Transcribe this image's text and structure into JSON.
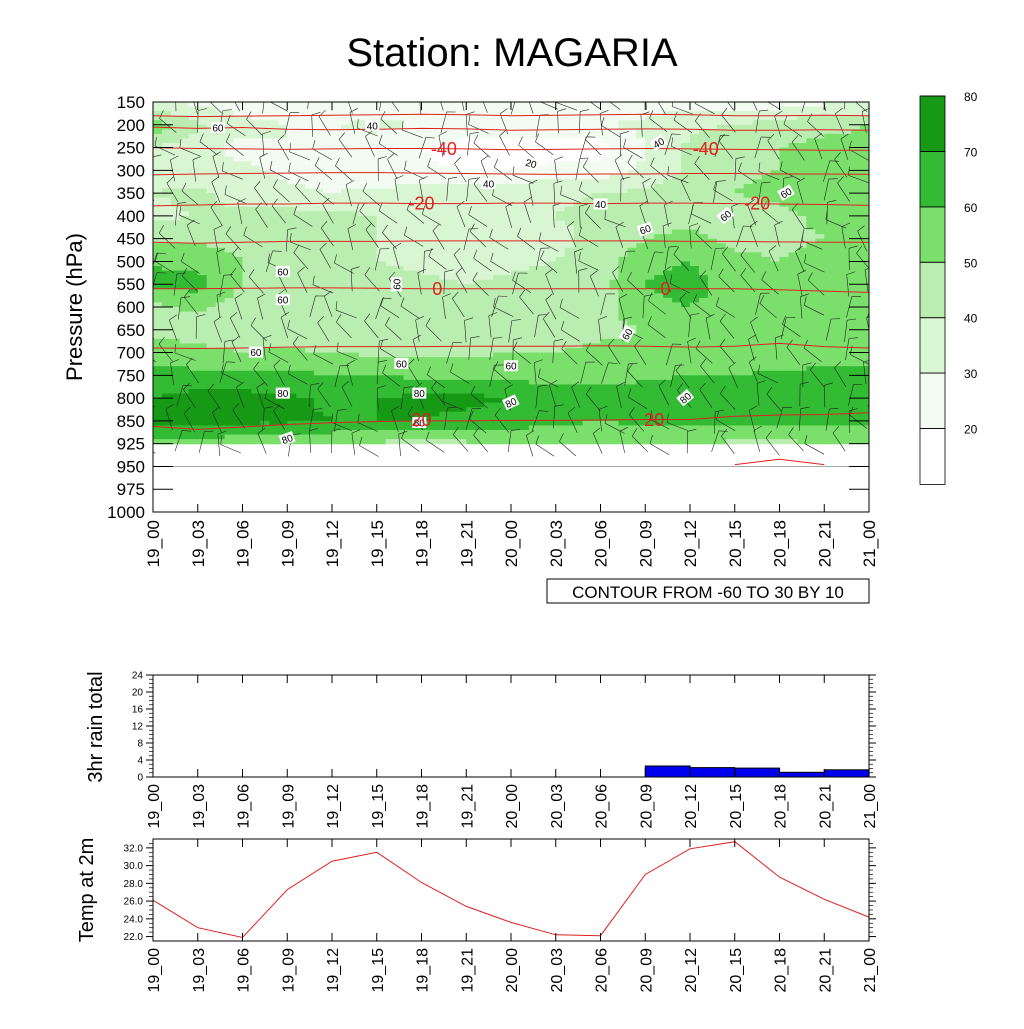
{
  "title": "Station: MAGARIA",
  "time_labels": [
    "19_00",
    "19_03",
    "19_06",
    "19_09",
    "19_12",
    "19_15",
    "19_18",
    "19_21",
    "20_00",
    "20_03",
    "20_06",
    "20_09",
    "20_12",
    "20_15",
    "20_18",
    "20_21",
    "21_00"
  ],
  "colors": {
    "fill_levels": [
      "#ffffff",
      "#f2fcf0",
      "#d9f6d3",
      "#b9eeb0",
      "#7ae06b",
      "#33bb33",
      "#169a16"
    ],
    "contour_line": "#e02020",
    "rain_bar": "#0000ee",
    "temp_line": "#e02020"
  },
  "chart_data": [
    {
      "type": "heatmap",
      "name": "cross-section",
      "ylabel": "Pressure (hPa)",
      "y_ticks": [
        150,
        200,
        250,
        300,
        350,
        400,
        450,
        500,
        550,
        600,
        650,
        700,
        750,
        800,
        850,
        925,
        950,
        975,
        1000
      ],
      "shaded_variable_levels": [
        30,
        40,
        50,
        60,
        70,
        80
      ],
      "shaded_rows_pressure": [
        150,
        200,
        250,
        300,
        350,
        400,
        450,
        500,
        550,
        600,
        650,
        700,
        750,
        800,
        850,
        925
      ],
      "shaded_grid": [
        [
          42,
          38,
          32,
          34,
          32,
          32,
          34,
          35,
          32,
          30,
          32,
          36,
          34,
          30,
          34,
          38,
          40
        ],
        [
          66,
          52,
          44,
          40,
          40,
          42,
          40,
          40,
          40,
          38,
          40,
          42,
          48,
          50,
          54,
          58,
          60
        ],
        [
          50,
          45,
          36,
          40,
          38,
          36,
          30,
          25,
          22,
          22,
          26,
          40,
          52,
          58,
          60,
          62,
          62
        ],
        [
          46,
          45,
          42,
          38,
          36,
          34,
          32,
          30,
          30,
          34,
          34,
          42,
          52,
          58,
          60,
          62,
          64
        ],
        [
          50,
          52,
          46,
          42,
          40,
          42,
          44,
          45,
          48,
          48,
          50,
          52,
          56,
          60,
          62,
          64,
          66
        ],
        [
          48,
          50,
          52,
          54,
          52,
          50,
          48,
          45,
          48,
          50,
          52,
          56,
          58,
          56,
          58,
          62,
          66
        ],
        [
          56,
          58,
          56,
          54,
          52,
          50,
          48,
          46,
          46,
          48,
          52,
          60,
          62,
          58,
          58,
          60,
          62
        ],
        [
          70,
          66,
          60,
          58,
          54,
          50,
          48,
          46,
          48,
          50,
          56,
          66,
          70,
          62,
          60,
          62,
          66
        ],
        [
          72,
          74,
          60,
          56,
          58,
          54,
          52,
          50,
          52,
          54,
          56,
          70,
          76,
          64,
          62,
          64,
          68
        ],
        [
          58,
          62,
          56,
          50,
          52,
          54,
          54,
          52,
          52,
          54,
          56,
          66,
          70,
          62,
          60,
          64,
          66
        ],
        [
          56,
          54,
          52,
          50,
          50,
          52,
          52,
          52,
          54,
          56,
          58,
          60,
          60,
          60,
          60,
          62,
          64
        ],
        [
          66,
          64,
          60,
          62,
          60,
          58,
          58,
          58,
          60,
          60,
          62,
          62,
          64,
          64,
          64,
          66,
          68
        ],
        [
          74,
          72,
          72,
          72,
          70,
          70,
          68,
          68,
          68,
          66,
          66,
          68,
          70,
          70,
          72,
          72,
          72
        ],
        [
          80,
          84,
          84,
          82,
          78,
          80,
          82,
          82,
          80,
          74,
          74,
          76,
          78,
          76,
          74,
          74,
          74
        ],
        [
          82,
          86,
          82,
          82,
          80,
          80,
          80,
          78,
          74,
          72,
          70,
          72,
          74,
          74,
          72,
          72,
          72
        ],
        [
          66,
          66,
          62,
          62,
          60,
          58,
          56,
          58,
          62,
          64,
          64,
          62,
          60,
          58,
          58,
          60,
          62
        ]
      ],
      "contour_line_labels": [
        {
          "text": "-40",
          "time": 6.5,
          "pressure": 253
        },
        {
          "text": "-40",
          "time": 12.35,
          "pressure": 253
        },
        {
          "text": "-20",
          "time": 6.0,
          "pressure": 373
        },
        {
          "text": "-20",
          "time": 13.5,
          "pressure": 373
        },
        {
          "text": "0",
          "time": 6.35,
          "pressure": 560
        },
        {
          "text": "0",
          "time": 11.45,
          "pressure": 560
        },
        {
          "text": "20",
          "time": 6.0,
          "pressure": 848
        },
        {
          "text": "20",
          "time": 11.2,
          "pressure": 848
        }
      ],
      "shaded_line_labels": [
        {
          "text": "60",
          "time": 1.45,
          "pressure": 207,
          "rot": 0
        },
        {
          "text": "40",
          "time": 4.9,
          "pressure": 203,
          "rot": 0
        },
        {
          "text": "20",
          "time": 8.45,
          "pressure": 285,
          "rot": 15
        },
        {
          "text": "40",
          "time": 7.5,
          "pressure": 330,
          "rot": 0
        },
        {
          "text": "40",
          "time": 10.0,
          "pressure": 375,
          "rot": 0
        },
        {
          "text": "40",
          "time": 11.3,
          "pressure": 240,
          "rot": -30
        },
        {
          "text": "60",
          "time": 14.15,
          "pressure": 350,
          "rot": -30
        },
        {
          "text": "60",
          "time": 12.8,
          "pressure": 400,
          "rot": -40
        },
        {
          "text": "60",
          "time": 11.0,
          "pressure": 430,
          "rot": -20
        },
        {
          "text": "60",
          "time": 2.9,
          "pressure": 523,
          "rot": 0
        },
        {
          "text": "60",
          "time": 5.45,
          "pressure": 550,
          "rot": -90
        },
        {
          "text": "60",
          "time": 2.9,
          "pressure": 585,
          "rot": 0
        },
        {
          "text": "60",
          "time": 10.6,
          "pressure": 660,
          "rot": -60
        },
        {
          "text": "60",
          "time": 2.3,
          "pressure": 700,
          "rot": 0
        },
        {
          "text": "60",
          "time": 5.55,
          "pressure": 725,
          "rot": 0
        },
        {
          "text": "60",
          "time": 8.0,
          "pressure": 730,
          "rot": 0
        },
        {
          "text": "80",
          "time": 2.9,
          "pressure": 790,
          "rot": 0
        },
        {
          "text": "80",
          "time": 5.95,
          "pressure": 790,
          "rot": 0
        },
        {
          "text": "80",
          "time": 8.0,
          "pressure": 810,
          "rot": -25
        },
        {
          "text": "80",
          "time": 11.9,
          "pressure": 800,
          "rot": -40
        },
        {
          "text": "80",
          "time": 5.95,
          "pressure": 857,
          "rot": 0
        },
        {
          "text": "80",
          "time": 3.0,
          "pressure": 910,
          "rot": -20
        }
      ],
      "temperature_isotherms": [
        {
          "value": -60,
          "pressure": [
            205,
            208,
            206,
            210,
            211,
            210,
            208,
            209,
            212,
            211,
            210,
            209,
            210,
            212,
            212,
            211,
            212
          ]
        },
        {
          "value": -50,
          "pressure": [
            180,
            182,
            181,
            180,
            179,
            178,
            177,
            178,
            180,
            179,
            178,
            177,
            178,
            180,
            180,
            179,
            180
          ]
        },
        {
          "value": -40,
          "pressure": [
            250,
            252,
            253,
            254,
            253,
            252,
            252,
            253,
            255,
            254,
            253,
            252,
            253,
            254,
            255,
            256,
            256
          ]
        },
        {
          "value": -30,
          "pressure": [
            310,
            308,
            307,
            306,
            305,
            305,
            306,
            307,
            308,
            309,
            308,
            308,
            307,
            307,
            308,
            308,
            309
          ]
        },
        {
          "value": -20,
          "pressure": [
            378,
            376,
            374,
            374,
            372,
            372,
            373,
            373,
            372,
            372,
            373,
            372,
            372,
            373,
            374,
            375,
            377
          ]
        },
        {
          "value": -10,
          "pressure": [
            458,
            460,
            458,
            456,
            456,
            456,
            455,
            455,
            455,
            455,
            455,
            455,
            456,
            456,
            457,
            458,
            458
          ]
        },
        {
          "value": 0,
          "pressure": [
            560,
            560,
            559,
            558,
            558,
            559,
            560,
            560,
            560,
            560,
            560,
            560,
            560,
            560,
            562,
            565,
            568
          ]
        },
        {
          "value": 10,
          "pressure": [
            690,
            691,
            690,
            688,
            687,
            687,
            687,
            686,
            686,
            686,
            685,
            686,
            688,
            686,
            680,
            687,
            690
          ]
        },
        {
          "value": 20,
          "pressure": [
            868,
            878,
            870,
            862,
            856,
            852,
            850,
            850,
            849,
            849,
            848,
            847,
            847,
            840,
            837,
            836,
            832
          ]
        },
        {
          "value": 30,
          "pressure": [
            null,
            null,
            null,
            null,
            null,
            null,
            null,
            null,
            null,
            null,
            null,
            null,
            null,
            948,
            942,
            948,
            null
          ]
        }
      ],
      "contour_info": "CONTOUR FROM -60 TO 30 BY 10",
      "colorbar_labels": [
        "20",
        "30",
        "40",
        "50",
        "60",
        "70",
        "80"
      ]
    },
    {
      "type": "bar",
      "name": "rain",
      "ylabel": "3hr rain total",
      "ylim": [
        0,
        24
      ],
      "y_ticks": [
        0,
        4,
        8,
        12,
        16,
        20,
        24
      ],
      "values": [
        0,
        0,
        0,
        0,
        0,
        0,
        0,
        0,
        0,
        0,
        0,
        0,
        2.6,
        2.2,
        2.1,
        1.1,
        1.7
      ]
    },
    {
      "type": "line",
      "name": "temp",
      "ylabel": "Temp at 2m",
      "ylim": [
        21.5,
        33.0
      ],
      "y_ticks": [
        22.0,
        24.0,
        26.0,
        28.0,
        30.0,
        32.0
      ],
      "values": [
        26.1,
        23.0,
        21.9,
        27.3,
        30.5,
        31.5,
        28.1,
        25.4,
        23.6,
        22.2,
        22.1,
        29.0,
        31.9,
        32.7,
        28.7,
        26.2,
        24.2
      ]
    }
  ]
}
